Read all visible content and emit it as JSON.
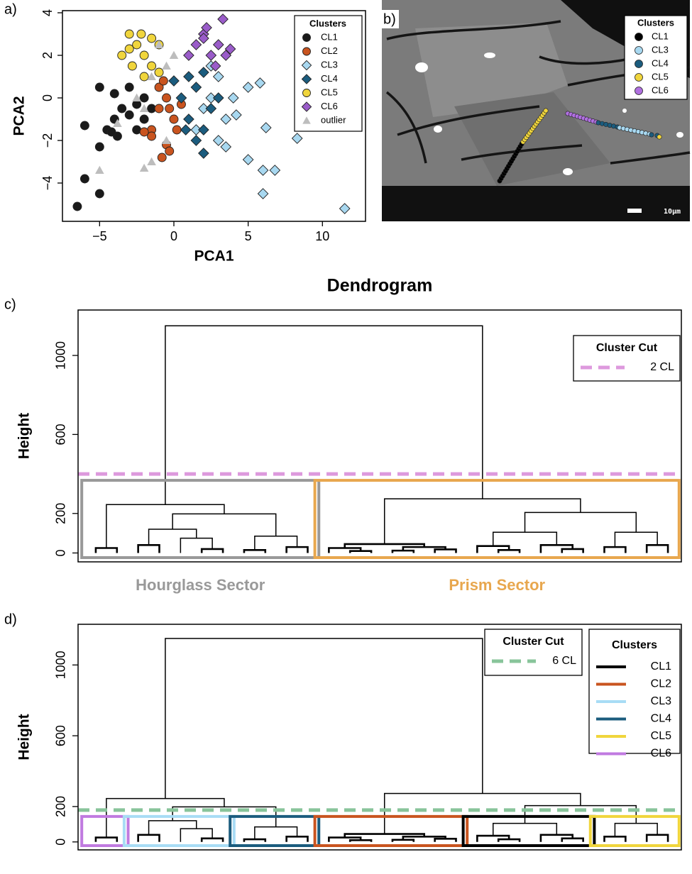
{
  "chart_data": [
    {
      "type": "scatter",
      "panel_label": "a)",
      "xlabel": "PCA1",
      "ylabel": "PCA2",
      "xlim": [
        -7.5,
        12.9
      ],
      "ylim": [
        -5.8,
        4.1
      ],
      "xticks": [
        {
          "value": -5,
          "label": "−5"
        },
        0,
        5,
        10
      ],
      "yticks": [
        {
          "value": -4,
          "label": "−4"
        },
        {
          "value": -2,
          "label": "−2"
        },
        0,
        2,
        4
      ],
      "legend_title": "Clusters",
      "series": [
        {
          "name": "CL1",
          "color": "#1a1a1a",
          "marker": "circle",
          "x": [
            -6.5,
            -6,
            -5,
            -6,
            -5,
            -4.5,
            -4,
            -3.5,
            -3,
            -2.5,
            -2,
            -1.5,
            -4,
            -5,
            -3,
            -2.5,
            -3.8,
            -4.2,
            -2
          ],
          "y": [
            -5.1,
            -3.8,
            -4.5,
            -1.3,
            -2.3,
            -1.5,
            -1,
            -0.5,
            -0.8,
            -0.3,
            -1,
            -0.5,
            0.2,
            0.5,
            0.5,
            -1.5,
            -1.8,
            -1.6,
            0
          ]
        },
        {
          "name": "CL2",
          "color": "#c9541f",
          "marker": "circle",
          "x": [
            -1.5,
            -1,
            -0.5,
            0,
            -0.3,
            0.5,
            -1,
            -0.5,
            -0.3,
            -0.8,
            -1.5,
            0.2,
            -2,
            -0.7
          ],
          "y": [
            -1.5,
            -0.5,
            0,
            -1,
            -0.5,
            -0.3,
            0.5,
            -2.2,
            -2.5,
            -2.8,
            -1.8,
            -1.5,
            -1.6,
            0.8
          ]
        },
        {
          "name": "CL3",
          "color": "#a8d8f0",
          "marker": "diamond",
          "x": [
            11.5,
            8.3,
            6.2,
            5,
            6,
            6.8,
            6,
            5.8,
            5,
            3,
            3.5,
            4,
            2.5,
            3,
            2,
            4.2,
            1.5,
            2.5,
            3.5
          ],
          "y": [
            -5.2,
            -1.9,
            -1.4,
            -2.9,
            -3.4,
            -3.4,
            -4.5,
            0.7,
            0.5,
            -2,
            -1,
            0,
            0,
            1,
            -0.5,
            -0.8,
            -1.5,
            1.5,
            -2.3
          ]
        },
        {
          "name": "CL4",
          "color": "#1b5c7e",
          "marker": "diamond",
          "x": [
            0.5,
            1,
            1.5,
            2,
            2.5,
            1,
            2,
            3,
            0.8,
            2,
            1.5,
            0
          ],
          "y": [
            0,
            -1,
            0.5,
            -1.5,
            -0.5,
            1,
            1.2,
            0,
            -1.5,
            -2.6,
            -2,
            0.8
          ]
        },
        {
          "name": "CL5",
          "color": "#f0d53c",
          "marker": "circle",
          "x": [
            -3.5,
            -3,
            -2.5,
            -2,
            -1.5,
            -1,
            -2.8,
            -2,
            -1.5,
            -3,
            -2.2,
            -1
          ],
          "y": [
            2,
            3,
            2.5,
            2,
            2.8,
            2.5,
            1.5,
            1,
            1.5,
            2.3,
            3,
            1.2
          ]
        },
        {
          "name": "CL6",
          "color": "#9a5cc9",
          "marker": "diamond",
          "x": [
            1.5,
            2,
            2.5,
            3,
            3.5,
            2.2,
            3.3,
            1,
            2.8,
            2,
            3.8
          ],
          "y": [
            2.5,
            3,
            2,
            2.5,
            2,
            3.3,
            3.7,
            2,
            1.5,
            2.8,
            2.3
          ]
        },
        {
          "name": "outlier",
          "color": "#bdbdbd",
          "marker": "triangle",
          "x": [
            -5,
            -2,
            -1.5,
            -0.5,
            -3.8,
            -2.5,
            -1.5,
            -1,
            0,
            -2,
            -0.5
          ],
          "y": [
            -3.4,
            -3.3,
            -3,
            -2,
            -1.2,
            0,
            1,
            2.5,
            2,
            -0.5,
            1.5
          ]
        }
      ]
    },
    {
      "type": "image",
      "panel_label": "b)",
      "legend_title": "Clusters",
      "scale_bar": "10μm",
      "series": [
        {
          "name": "CL1",
          "color": "#000000"
        },
        {
          "name": "CL3",
          "color": "#a8d8f0"
        },
        {
          "name": "CL4",
          "color": "#1b5c7e"
        },
        {
          "name": "CL5",
          "color": "#f0d53c"
        },
        {
          "name": "CL6",
          "color": "#b070e0"
        }
      ]
    },
    {
      "type": "dendrogram",
      "panel_label": "c)",
      "title": "Dendrogram",
      "ylabel": "Height",
      "ylim": [
        -45,
        1230
      ],
      "yticks": [
        0,
        200,
        600,
        1000
      ],
      "cut": {
        "legend_title": "Cluster Cut",
        "name": "2 CL",
        "height": 400,
        "color": "#dd99dd"
      },
      "sectors": [
        {
          "name": "Hourglass Sector",
          "color": "#999999"
        },
        {
          "name": "Prism Sector",
          "color": "#e8a74e"
        }
      ],
      "tree": {
        "height": 1150,
        "children": [
          {
            "height": 245,
            "children": [
              {
                "height": 25,
                "children": [
                  0,
                  0
                ]
              },
              {
                "height": 198,
                "children": [
                  {
                    "height": 120,
                    "children": [
                      {
                        "height": 40,
                        "children": [
                          0,
                          0
                        ]
                      },
                      {
                        "height": 75,
                        "children": [
                          0,
                          {
                            "height": 20,
                            "children": [
                              0,
                              0
                            ]
                          }
                        ]
                      }
                    ]
                  },
                  {
                    "height": 85,
                    "children": [
                      {
                        "height": 15,
                        "children": [
                          0,
                          0
                        ]
                      },
                      {
                        "height": 30,
                        "children": [
                          0,
                          0
                        ]
                      }
                    ]
                  }
                ]
              }
            ]
          },
          {
            "height": 274,
            "children": [
              {
                "height": 45,
                "children": [
                  {
                    "height": 25,
                    "children": [
                      0,
                      {
                        "height": 10,
                        "children": [
                          0,
                          0
                        ]
                      }
                    ]
                  },
                  {
                    "height": 30,
                    "children": [
                      {
                        "height": 12,
                        "children": [
                          0,
                          0
                        ]
                      },
                      {
                        "height": 18,
                        "children": [
                          0,
                          0
                        ]
                      }
                    ]
                  }
                ]
              },
              {
                "height": 205,
                "children": [
                  {
                    "height": 105,
                    "children": [
                      {
                        "height": 35,
                        "children": [
                          0,
                          {
                            "height": 15,
                            "children": [
                              0,
                              0
                            ]
                          }
                        ]
                      },
                      {
                        "height": 40,
                        "children": [
                          0,
                          {
                            "height": 20,
                            "children": [
                              0,
                              0
                            ]
                          }
                        ]
                      }
                    ]
                  },
                  {
                    "height": 105,
                    "children": [
                      {
                        "height": 30,
                        "children": [
                          0,
                          0
                        ]
                      },
                      {
                        "height": 40,
                        "children": [
                          0,
                          0
                        ]
                      }
                    ]
                  }
                ]
              }
            ]
          }
        ]
      }
    },
    {
      "type": "dendrogram",
      "panel_label": "d)",
      "ylabel": "Height",
      "ylim": [
        -45,
        1230
      ],
      "yticks": [
        0,
        200,
        600,
        1000
      ],
      "cut": {
        "legend_title": "Cluster Cut",
        "name": "6 CL",
        "height": 180,
        "color": "#88c49a"
      },
      "legend_title": "Clusters",
      "series": [
        {
          "name": "CL1",
          "color": "#000000"
        },
        {
          "name": "CL2",
          "color": "#c9541f"
        },
        {
          "name": "CL3",
          "color": "#a8dcf5"
        },
        {
          "name": "CL4",
          "color": "#1b5c7e"
        },
        {
          "name": "CL5",
          "color": "#f0d53c"
        },
        {
          "name": "CL6",
          "color": "#c07ae0"
        }
      ],
      "boxes": [
        "CL6",
        "CL3",
        "CL4",
        "CL2",
        "CL1",
        "CL5"
      ],
      "tree": {
        "height": 1150,
        "children": [
          {
            "height": 245,
            "children": [
              {
                "height": 25,
                "children": [
                  0,
                  0
                ]
              },
              {
                "height": 198,
                "children": [
                  {
                    "height": 120,
                    "children": [
                      {
                        "height": 40,
                        "children": [
                          0,
                          0
                        ]
                      },
                      {
                        "height": 75,
                        "children": [
                          0,
                          {
                            "height": 20,
                            "children": [
                              0,
                              0
                            ]
                          }
                        ]
                      }
                    ]
                  },
                  {
                    "height": 85,
                    "children": [
                      {
                        "height": 15,
                        "children": [
                          0,
                          0
                        ]
                      },
                      {
                        "height": 30,
                        "children": [
                          0,
                          0
                        ]
                      }
                    ]
                  }
                ]
              }
            ]
          },
          {
            "height": 274,
            "children": [
              {
                "height": 45,
                "children": [
                  {
                    "height": 25,
                    "children": [
                      0,
                      {
                        "height": 10,
                        "children": [
                          0,
                          0
                        ]
                      }
                    ]
                  },
                  {
                    "height": 30,
                    "children": [
                      {
                        "height": 12,
                        "children": [
                          0,
                          0
                        ]
                      },
                      {
                        "height": 18,
                        "children": [
                          0,
                          0
                        ]
                      }
                    ]
                  }
                ]
              },
              {
                "height": 205,
                "children": [
                  {
                    "height": 105,
                    "children": [
                      {
                        "height": 35,
                        "children": [
                          0,
                          {
                            "height": 15,
                            "children": [
                              0,
                              0
                            ]
                          }
                        ]
                      },
                      {
                        "height": 40,
                        "children": [
                          0,
                          {
                            "height": 20,
                            "children": [
                              0,
                              0
                            ]
                          }
                        ]
                      }
                    ]
                  },
                  {
                    "height": 105,
                    "children": [
                      {
                        "height": 30,
                        "children": [
                          0,
                          0
                        ]
                      },
                      {
                        "height": 40,
                        "children": [
                          0,
                          0
                        ]
                      }
                    ]
                  }
                ]
              }
            ]
          }
        ]
      }
    }
  ]
}
